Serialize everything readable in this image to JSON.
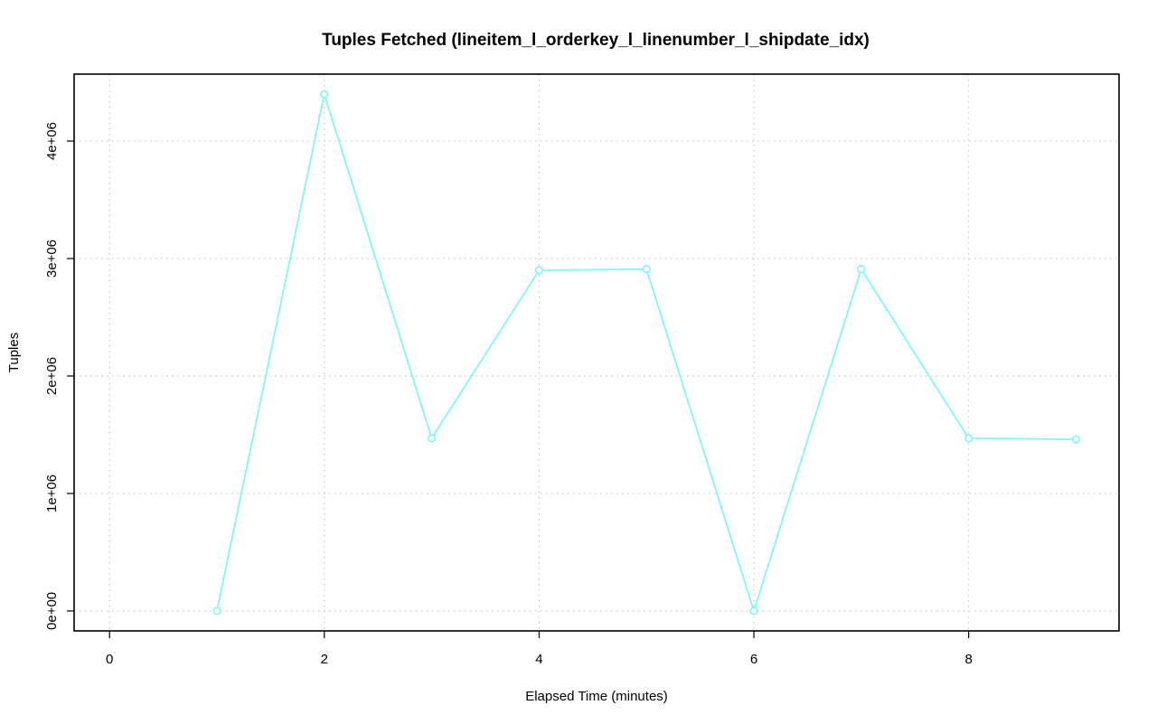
{
  "chart_data": {
    "type": "line",
    "title": "Tuples Fetched (lineitem_l_orderkey_l_linenumber_l_shipdate_idx)",
    "xlabel": "Elapsed Time (minutes)",
    "ylabel": "Tuples",
    "xlim": [
      -0.33,
      9.4
    ],
    "ylim": [
      -170000,
      4570000
    ],
    "xticks": [
      0,
      2,
      4,
      6,
      8
    ],
    "xtick_labels": [
      "0",
      "2",
      "4",
      "6",
      "8"
    ],
    "yticks": [
      0,
      1000000,
      2000000,
      3000000,
      4000000
    ],
    "ytick_labels": [
      "0e+00",
      "1e+06",
      "2e+06",
      "3e+06",
      "4e+06"
    ],
    "grid": true,
    "series": [
      {
        "color": "#7ff7f7",
        "marker": "circle",
        "x": [
          1,
          2,
          3,
          4,
          5,
          6,
          7,
          8,
          9
        ],
        "y": [
          0,
          4400000,
          1470000,
          2900000,
          2910000,
          0,
          2910000,
          1470000,
          1460000
        ]
      }
    ]
  }
}
